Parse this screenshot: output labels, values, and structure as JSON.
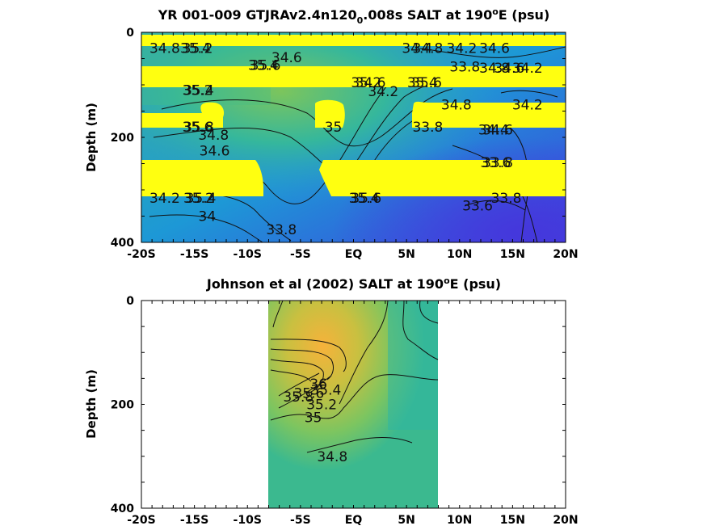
{
  "figure": {
    "panel_top_title": {
      "main": "YR 001-009 GTJRAv2.4n120",
      "sub": "0",
      "rest": ".008s SALT at 190",
      "sup": "o",
      "end": "E (psu)"
    },
    "panel_bottom_title": {
      "main": "Johnson et al (2002) SALT at 190",
      "sup": "o",
      "end": "E (psu)"
    },
    "ylabel": "Depth (m)",
    "xtick_labels": [
      "-20S",
      "-15S",
      "-10S",
      "-5S",
      "EQ",
      "5N",
      "10N",
      "15N",
      "20N"
    ],
    "ytick_labels": [
      "0",
      "200",
      "400"
    ]
  },
  "chart_data": [
    {
      "type": "heatmap",
      "title": "YR 001-009 GTJRAv2.4n120_0.008s SALT at 190°E (psu)",
      "xlabel": "",
      "ylabel": "Depth (m)",
      "xlim": [
        -20,
        20
      ],
      "ylim": [
        400,
        0
      ],
      "x_ticks": [
        -20,
        -15,
        -10,
        -5,
        0,
        5,
        10,
        15,
        20
      ],
      "y_ticks": [
        0,
        200,
        400
      ],
      "colors": {
        "low": "#3d3fe0",
        "mid": "#2bb6b0",
        "high": "#f6b840",
        "mask": "#ffff10"
      },
      "mask_bands_depth": [
        [
          0,
          22
        ],
        [
          68,
          110
        ],
        [
          150,
          182
        ],
        [
          244,
          316
        ]
      ],
      "contour_labels": [
        {
          "text": "34.8",
          "lat": -17.8,
          "depth": 30
        },
        {
          "text": "35.4",
          "lat": -14.9,
          "depth": 30
        },
        {
          "text": "35.2",
          "lat": -14.7,
          "depth": 30
        },
        {
          "text": "34.6",
          "lat": -6.3,
          "depth": 48
        },
        {
          "text": "35.4",
          "lat": -8.5,
          "depth": 62
        },
        {
          "text": "35.6",
          "lat": -8.3,
          "depth": 62
        },
        {
          "text": "35.2",
          "lat": -14.7,
          "depth": 110
        },
        {
          "text": "35.4",
          "lat": -14.6,
          "depth": 110
        },
        {
          "text": "35.6",
          "lat": -14.7,
          "depth": 180
        },
        {
          "text": "35.8",
          "lat": -14.6,
          "depth": 180
        },
        {
          "text": "34.8",
          "lat": -13.2,
          "depth": 195
        },
        {
          "text": "34.6",
          "lat": -13.1,
          "depth": 225
        },
        {
          "text": "35",
          "lat": -1.9,
          "depth": 180
        },
        {
          "text": "34.2",
          "lat": -17.8,
          "depth": 315
        },
        {
          "text": "35.2",
          "lat": -14.6,
          "depth": 315
        },
        {
          "text": "35.4",
          "lat": -14.4,
          "depth": 315
        },
        {
          "text": "34",
          "lat": -13.8,
          "depth": 350
        },
        {
          "text": "33.8",
          "lat": -6.8,
          "depth": 375
        },
        {
          "text": "34.6",
          "lat": 1.6,
          "depth": 95
        },
        {
          "text": "35.2",
          "lat": 1.2,
          "depth": 95
        },
        {
          "text": "34.2",
          "lat": 2.8,
          "depth": 112
        },
        {
          "text": "35.4",
          "lat": 6.5,
          "depth": 95
        },
        {
          "text": "35.6",
          "lat": 6.9,
          "depth": 95
        },
        {
          "text": "35.4",
          "lat": 1.0,
          "depth": 315
        },
        {
          "text": "35.6",
          "lat": 1.2,
          "depth": 315
        },
        {
          "text": "34.4",
          "lat": 6.0,
          "depth": 30
        },
        {
          "text": "34.8",
          "lat": 7.0,
          "depth": 30
        },
        {
          "text": "34.2",
          "lat": 10.2,
          "depth": 30
        },
        {
          "text": "34.6",
          "lat": 13.3,
          "depth": 30
        },
        {
          "text": "33.8",
          "lat": 10.5,
          "depth": 65
        },
        {
          "text": "34.8",
          "lat": 13.3,
          "depth": 68
        },
        {
          "text": "34.6",
          "lat": 14.7,
          "depth": 68
        },
        {
          "text": "34.2",
          "lat": 16.4,
          "depth": 68
        },
        {
          "text": "34.8",
          "lat": 9.7,
          "depth": 138
        },
        {
          "text": "34.2",
          "lat": 16.4,
          "depth": 138
        },
        {
          "text": "33.8",
          "lat": 7.0,
          "depth": 180
        },
        {
          "text": "34.4",
          "lat": 13.2,
          "depth": 185
        },
        {
          "text": "34.6",
          "lat": 13.6,
          "depth": 185
        },
        {
          "text": "33.8",
          "lat": 13.6,
          "depth": 248
        },
        {
          "text": "33.6",
          "lat": 13.4,
          "depth": 248
        },
        {
          "text": "33.6",
          "lat": 11.7,
          "depth": 330
        },
        {
          "text": "33.8",
          "lat": 14.4,
          "depth": 315
        }
      ]
    },
    {
      "type": "heatmap",
      "title": "Johnson et al (2002) SALT at 190°E (psu)",
      "xlabel": "",
      "ylabel": "Depth (m)",
      "xlim": [
        -20,
        20
      ],
      "ylim": [
        400,
        0
      ],
      "x_ticks": [
        -20,
        -15,
        -10,
        -5,
        0,
        5,
        10,
        15,
        20
      ],
      "y_ticks": [
        0,
        200,
        400
      ],
      "data_lat_range": [
        -8,
        8
      ],
      "colors": {
        "low": "#1fb0a6",
        "mid": "#8cc45a",
        "high": "#f7b13a"
      },
      "contour_labels": [
        {
          "text": "36",
          "lat": -3.3,
          "depth": 160
        },
        {
          "text": "35.4",
          "lat": -2.6,
          "depth": 172
        },
        {
          "text": "35.6",
          "lat": -4.2,
          "depth": 178
        },
        {
          "text": "35.8",
          "lat": -5.2,
          "depth": 185
        },
        {
          "text": "35.2",
          "lat": -3.0,
          "depth": 200
        },
        {
          "text": "35",
          "lat": -3.8,
          "depth": 225
        },
        {
          "text": "34.8",
          "lat": -2.0,
          "depth": 300
        }
      ]
    }
  ]
}
